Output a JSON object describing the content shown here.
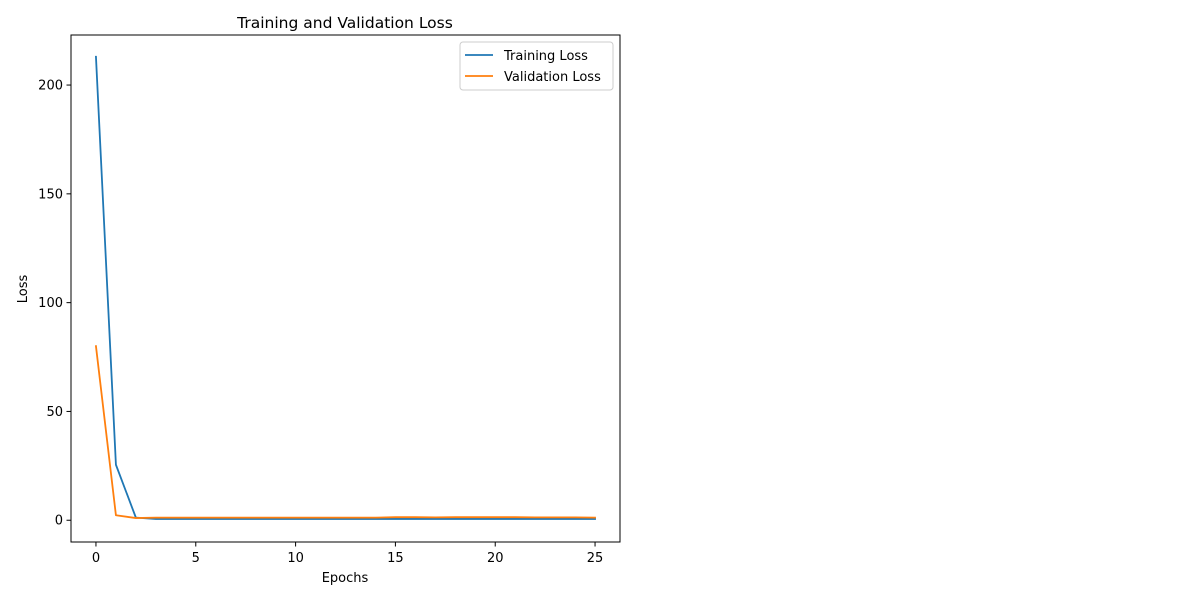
{
  "chart_data": {
    "type": "line",
    "title": "Training and Validation Loss",
    "xlabel": "Epochs",
    "ylabel": "Loss",
    "xlim": [
      -1.25,
      26.25
    ],
    "ylim": [
      -10,
      223
    ],
    "xticks": [
      0,
      5,
      10,
      15,
      20,
      25
    ],
    "yticks": [
      0,
      50,
      100,
      150,
      200
    ],
    "x": [
      0,
      1,
      2,
      3,
      4,
      5,
      6,
      7,
      8,
      9,
      10,
      11,
      12,
      13,
      14,
      15,
      16,
      17,
      18,
      19,
      20,
      21,
      22,
      23,
      24,
      25
    ],
    "series": [
      {
        "name": "Training Loss",
        "color": "#1f77b4",
        "values": [
          213,
          25.5,
          1.2,
          0.6,
          0.6,
          0.6,
          0.6,
          0.6,
          0.6,
          0.6,
          0.6,
          0.6,
          0.6,
          0.6,
          0.6,
          0.6,
          0.6,
          0.6,
          0.6,
          0.6,
          0.6,
          0.6,
          0.6,
          0.6,
          0.6,
          0.6
        ]
      },
      {
        "name": "Validation Loss",
        "color": "#ff7f0e",
        "values": [
          80,
          2.3,
          1.0,
          1.2,
          1.2,
          1.2,
          1.2,
          1.2,
          1.2,
          1.2,
          1.2,
          1.2,
          1.2,
          1.2,
          1.2,
          1.4,
          1.4,
          1.3,
          1.4,
          1.4,
          1.4,
          1.4,
          1.3,
          1.3,
          1.3,
          1.2
        ]
      }
    ],
    "legend": {
      "position": "top-right"
    },
    "grid": false
  }
}
